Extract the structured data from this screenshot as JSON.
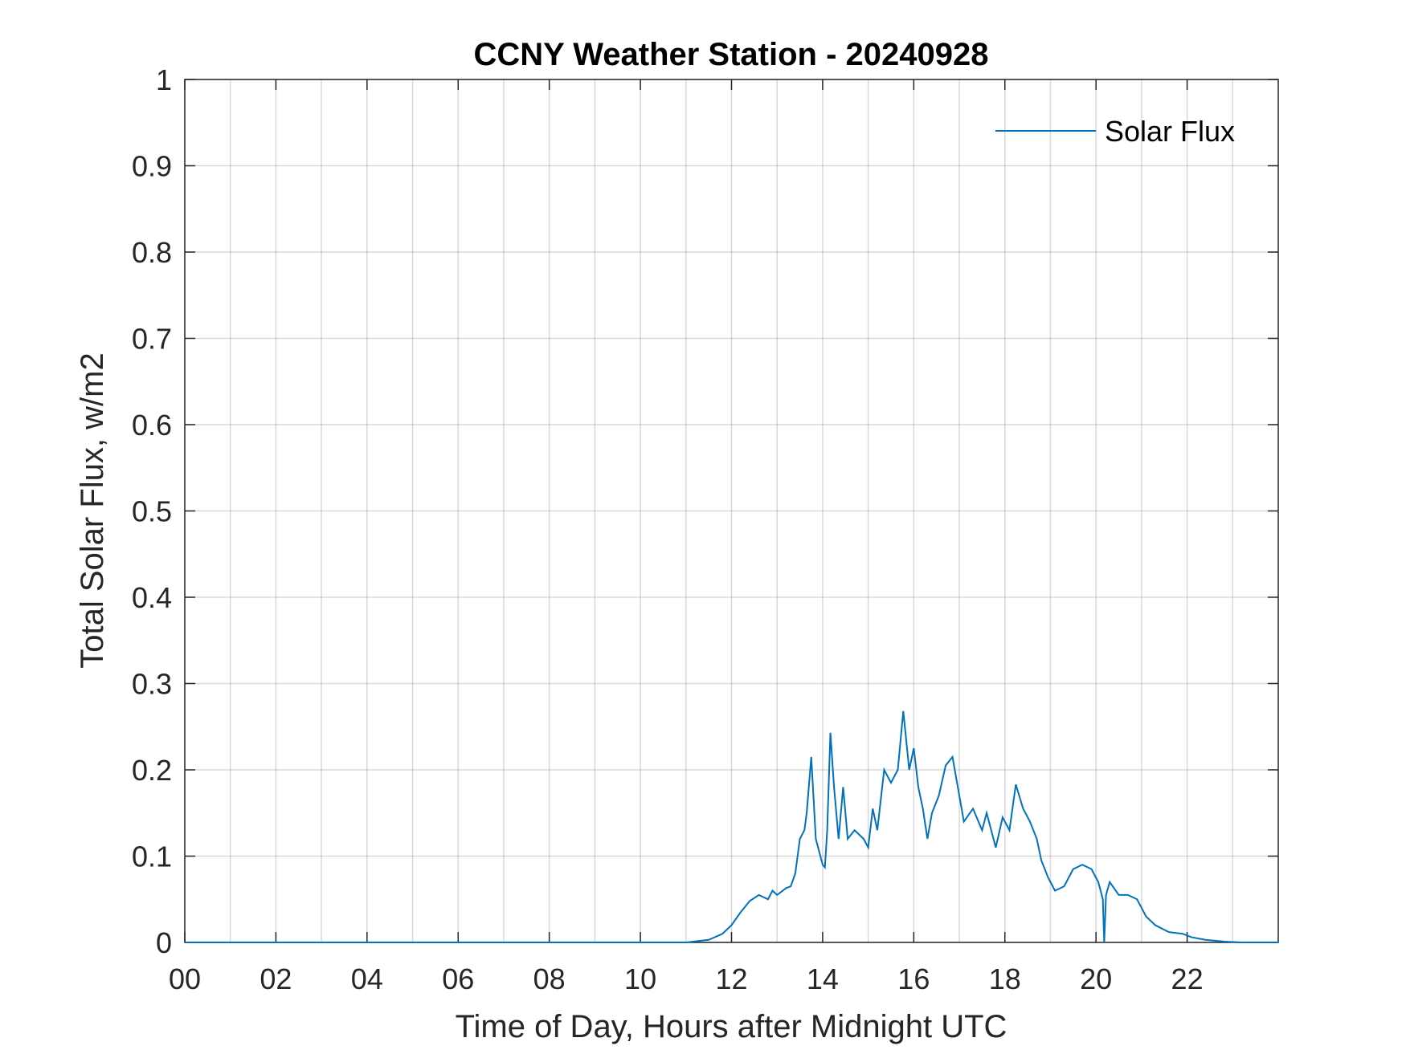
{
  "chart_data": {
    "type": "line",
    "title": "CCNY Weather Station - 20240928",
    "xlabel": "Time of Day, Hours after Midnight UTC",
    "ylabel": "Total Solar Flux, w/m2",
    "xlim": [
      0,
      24
    ],
    "ylim": [
      0,
      1
    ],
    "xticks": [
      {
        "value": 0,
        "label": "00"
      },
      {
        "value": 2,
        "label": "02"
      },
      {
        "value": 4,
        "label": "04"
      },
      {
        "value": 6,
        "label": "06"
      },
      {
        "value": 8,
        "label": "08"
      },
      {
        "value": 10,
        "label": "10"
      },
      {
        "value": 12,
        "label": "12"
      },
      {
        "value": 14,
        "label": "14"
      },
      {
        "value": 16,
        "label": "16"
      },
      {
        "value": 18,
        "label": "18"
      },
      {
        "value": 20,
        "label": "20"
      },
      {
        "value": 22,
        "label": "22"
      }
    ],
    "xminor_grid": [
      1,
      3,
      5,
      7,
      9,
      11,
      13,
      15,
      17,
      19,
      21,
      23
    ],
    "yticks": [
      0,
      0.1,
      0.2,
      0.3,
      0.4,
      0.5,
      0.6,
      0.7,
      0.8,
      0.9,
      1
    ],
    "grid": true,
    "legend": "upper right",
    "x": [
      0,
      10,
      11,
      11.5,
      11.8,
      12.0,
      12.2,
      12.4,
      12.6,
      12.8,
      12.9,
      13.0,
      13.2,
      13.3,
      13.4,
      13.5,
      13.6,
      13.65,
      13.75,
      13.85,
      14.0,
      14.05,
      14.1,
      14.17,
      14.25,
      14.35,
      14.45,
      14.55,
      14.7,
      14.9,
      15.0,
      15.1,
      15.2,
      15.35,
      15.5,
      15.65,
      15.77,
      15.9,
      16.0,
      16.1,
      16.2,
      16.3,
      16.4,
      16.55,
      16.7,
      16.85,
      17.0,
      17.1,
      17.3,
      17.5,
      17.6,
      17.8,
      17.95,
      18.1,
      18.24,
      18.4,
      18.55,
      18.7,
      18.8,
      18.95,
      19.1,
      19.3,
      19.5,
      19.7,
      19.9,
      20.05,
      20.15,
      20.18,
      20.22,
      20.3,
      20.5,
      20.7,
      20.9,
      21.1,
      21.3,
      21.6,
      21.9,
      22.1,
      22.4,
      22.8,
      23.2,
      24
    ],
    "series": [
      {
        "name": "Solar Flux",
        "color": "#0072bd",
        "values": [
          0,
          0,
          0,
          0.003,
          0.01,
          0.02,
          0.035,
          0.048,
          0.055,
          0.05,
          0.06,
          0.055,
          0.063,
          0.065,
          0.08,
          0.12,
          0.13,
          0.15,
          0.215,
          0.12,
          0.09,
          0.087,
          0.13,
          0.243,
          0.18,
          0.12,
          0.18,
          0.12,
          0.13,
          0.12,
          0.11,
          0.155,
          0.13,
          0.2,
          0.185,
          0.2,
          0.268,
          0.2,
          0.225,
          0.18,
          0.155,
          0.12,
          0.15,
          0.17,
          0.205,
          0.215,
          0.17,
          0.14,
          0.155,
          0.13,
          0.15,
          0.11,
          0.145,
          0.13,
          0.183,
          0.155,
          0.14,
          0.12,
          0.095,
          0.075,
          0.06,
          0.065,
          0.085,
          0.09,
          0.085,
          0.07,
          0.05,
          0,
          0.055,
          0.07,
          0.055,
          0.055,
          0.05,
          0.03,
          0.02,
          0.012,
          0.01,
          0.006,
          0.003,
          0.001,
          0,
          0
        ]
      }
    ]
  }
}
